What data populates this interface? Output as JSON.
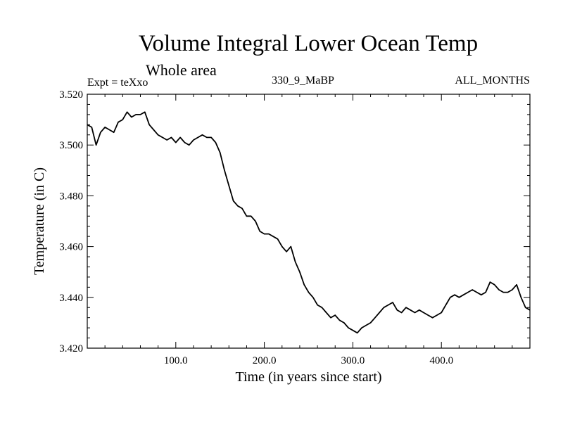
{
  "header": {
    "title": "Volume Integral Lower Ocean Temp",
    "subtitle": "Whole area",
    "expt_label": "Expt = teXxo",
    "run_label": "330_9_MaBP",
    "months_label": "ALL_MONTHS"
  },
  "chart_data": {
    "type": "line",
    "title": "Volume Integral Lower Ocean Temp",
    "subtitle": "Whole area",
    "xlabel": "Time (in years since start)",
    "ylabel": "Temperature (in C)",
    "xlim": [
      0,
      500
    ],
    "ylim": [
      3.42,
      3.52
    ],
    "xticks": [
      100,
      200,
      300,
      400
    ],
    "xtick_labels": [
      "100.0",
      "200.0",
      "300.0",
      "400.0"
    ],
    "yticks": [
      3.42,
      3.44,
      3.46,
      3.48,
      3.5,
      3.52
    ],
    "ytick_labels": [
      "3.420",
      "3.440",
      "3.460",
      "3.480",
      "3.500",
      "3.520"
    ],
    "grid": false,
    "line_color": "#000000",
    "series": [
      {
        "name": "Volume Integral Lower Ocean Temp",
        "x": [
          0,
          5,
          10,
          15,
          20,
          25,
          30,
          35,
          40,
          45,
          50,
          55,
          60,
          65,
          70,
          75,
          80,
          85,
          90,
          95,
          100,
          105,
          110,
          115,
          120,
          125,
          130,
          135,
          140,
          145,
          150,
          155,
          160,
          165,
          170,
          175,
          180,
          185,
          190,
          195,
          200,
          205,
          210,
          215,
          220,
          225,
          230,
          235,
          240,
          245,
          250,
          255,
          260,
          265,
          270,
          275,
          280,
          285,
          290,
          295,
          300,
          305,
          310,
          315,
          320,
          325,
          330,
          335,
          340,
          345,
          350,
          355,
          360,
          365,
          370,
          375,
          380,
          385,
          390,
          395,
          400,
          405,
          410,
          415,
          420,
          425,
          430,
          435,
          440,
          445,
          450,
          455,
          460,
          465,
          470,
          475,
          480,
          485,
          490,
          495,
          500
        ],
        "values": [
          3.508,
          3.507,
          3.5,
          3.505,
          3.507,
          3.506,
          3.505,
          3.509,
          3.51,
          3.513,
          3.511,
          3.512,
          3.512,
          3.513,
          3.508,
          3.506,
          3.504,
          3.503,
          3.502,
          3.503,
          3.501,
          3.503,
          3.501,
          3.5,
          3.502,
          3.503,
          3.504,
          3.503,
          3.503,
          3.501,
          3.497,
          3.49,
          3.484,
          3.478,
          3.476,
          3.475,
          3.472,
          3.472,
          3.47,
          3.466,
          3.465,
          3.465,
          3.464,
          3.463,
          3.46,
          3.458,
          3.46,
          3.454,
          3.45,
          3.445,
          3.442,
          3.44,
          3.437,
          3.436,
          3.434,
          3.432,
          3.433,
          3.431,
          3.43,
          3.428,
          3.427,
          3.426,
          3.428,
          3.429,
          3.43,
          3.432,
          3.434,
          3.436,
          3.437,
          3.438,
          3.435,
          3.434,
          3.436,
          3.435,
          3.434,
          3.435,
          3.434,
          3.433,
          3.432,
          3.433,
          3.434,
          3.437,
          3.44,
          3.441,
          3.44,
          3.441,
          3.442,
          3.443,
          3.442,
          3.441,
          3.442,
          3.446,
          3.445,
          3.443,
          3.442,
          3.442,
          3.443,
          3.445,
          3.44,
          3.436,
          3.435
        ]
      }
    ]
  }
}
